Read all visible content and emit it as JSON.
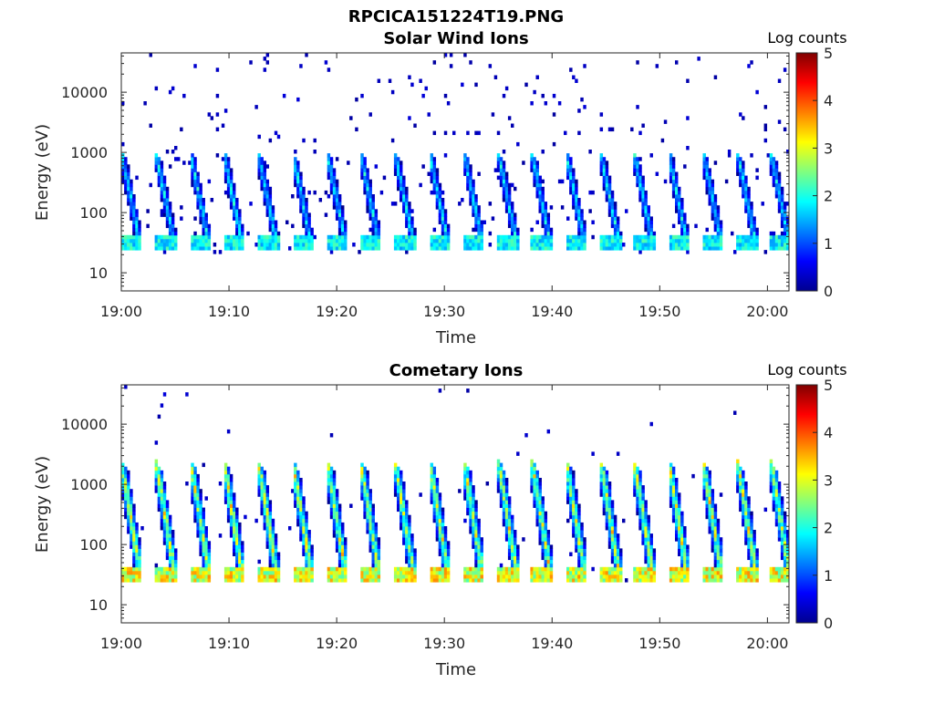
{
  "figure_title": "RPCICA151224T19.PNG",
  "chart_data": [
    {
      "type": "heatmap",
      "title": "Solar Wind Ions",
      "xlabel": "Time",
      "ylabel": "Energy (eV)",
      "x_tick_labels": [
        "19:00",
        "19:10",
        "19:20",
        "19:30",
        "19:40",
        "19:50",
        "20:00"
      ],
      "xlim_minutes": [
        0,
        62
      ],
      "y_scale": "log",
      "ylim": [
        5,
        45000
      ],
      "y_ticks": [
        10,
        100,
        1000,
        10000
      ],
      "y_tick_labels": [
        "10",
        "100",
        "1000",
        "10000"
      ],
      "colorbar": {
        "label": "Log counts",
        "ticks": [
          "0",
          "1",
          "2",
          "3",
          "4",
          "5"
        ],
        "range": [
          0,
          5
        ],
        "colormap": "jet"
      },
      "sweep_start_minutes": [
        0,
        3.2,
        6.4,
        9.5,
        12.7,
        15.9,
        19.1,
        22.2,
        25.4,
        28.6,
        31.8,
        35.0,
        38.1,
        41.3,
        44.5,
        47.6,
        50.8,
        54.0,
        57.2,
        60.3
      ],
      "core_energy_eV": [
        25,
        45
      ],
      "peak_log_counts": 2.3,
      "background": "sparse isolated counts at log counts 0-0.5 from 20 eV to 30000 eV"
    },
    {
      "type": "heatmap",
      "title": "Cometary Ions",
      "xlabel": "Time",
      "ylabel": "Energy (eV)",
      "x_tick_labels": [
        "19:00",
        "19:10",
        "19:20",
        "19:30",
        "19:40",
        "19:50",
        "20:00"
      ],
      "xlim_minutes": [
        0,
        62
      ],
      "y_scale": "log",
      "ylim": [
        5,
        45000
      ],
      "y_ticks": [
        10,
        100,
        1000,
        10000
      ],
      "y_tick_labels": [
        "10",
        "100",
        "1000",
        "10000"
      ],
      "colorbar": {
        "label": "Log counts",
        "ticks": [
          "0",
          "1",
          "2",
          "3",
          "4",
          "5"
        ],
        "range": [
          0,
          5
        ],
        "colormap": "jet"
      },
      "sweep_start_minutes": [
        0,
        3.2,
        6.4,
        9.5,
        12.7,
        15.9,
        19.1,
        22.2,
        25.4,
        28.6,
        31.8,
        35.0,
        38.1,
        41.3,
        44.5,
        47.6,
        50.8,
        54.0,
        57.2,
        60.3
      ],
      "core_energy_eV": [
        25,
        45
      ],
      "peak_log_counts": 3.7,
      "max_energy_eV": 2500,
      "background": "sparse counts above 5000 eV at log counts 0-0.3"
    }
  ]
}
